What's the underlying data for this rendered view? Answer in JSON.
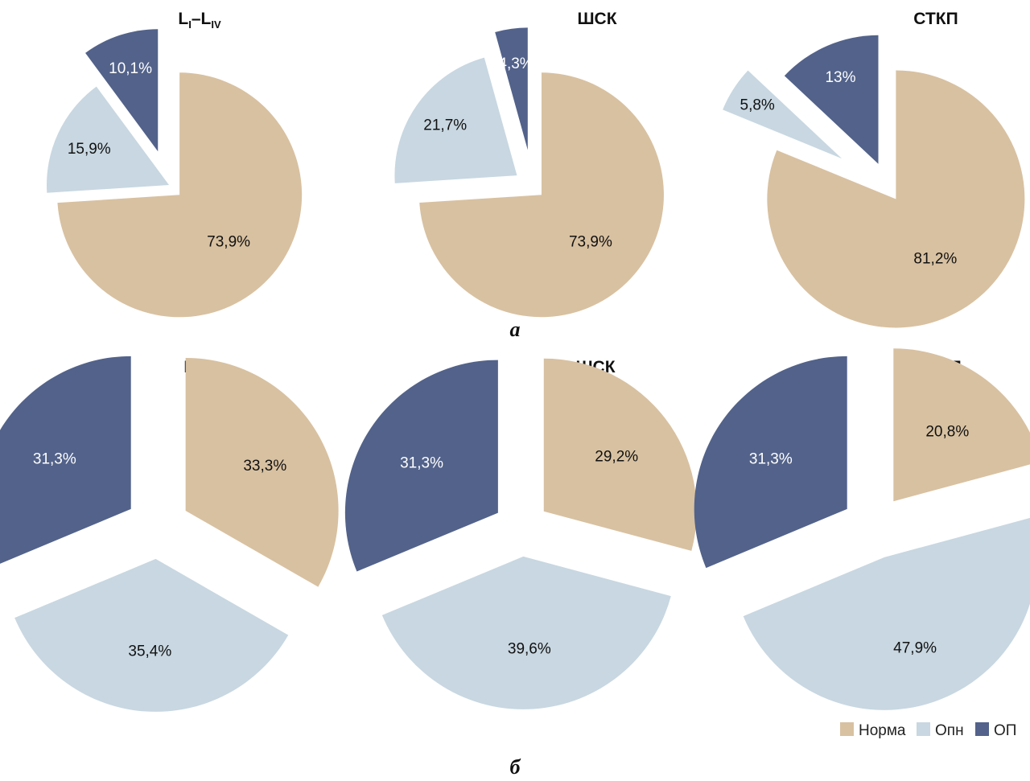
{
  "colors": {
    "norma": "#d8c1a1",
    "opn": "#c8d7e1",
    "op": "#52628a"
  },
  "legend": [
    {
      "label": "Норма",
      "color": "#d8c1a1"
    },
    {
      "label": "Опн",
      "color": "#c8d7e1"
    },
    {
      "label": "ОП",
      "color": "#52628a"
    }
  ],
  "panels": {
    "a": "а",
    "b": "б"
  },
  "chart_data": [
    {
      "type": "pie",
      "panel": "а",
      "title": "L–L",
      "title_parts": {
        "base1": "L",
        "sub1": "I",
        "dash": "–",
        "base2": "L",
        "sub2": "IV"
      },
      "slices": [
        {
          "category": "Норма",
          "value": 73.9,
          "label": "73,9%"
        },
        {
          "category": "Опн",
          "value": 15.9,
          "label": "15,9%"
        },
        {
          "category": "ОП",
          "value": 10.1,
          "label": "10,1%"
        }
      ]
    },
    {
      "type": "pie",
      "panel": "а",
      "title": "ШСК",
      "slices": [
        {
          "category": "Норма",
          "value": 73.9,
          "label": "73,9%"
        },
        {
          "category": "Опн",
          "value": 21.7,
          "label": "21,7%"
        },
        {
          "category": "ОП",
          "value": 4.3,
          "label": "4,3%"
        }
      ]
    },
    {
      "type": "pie",
      "panel": "а",
      "title": "СТКП",
      "slices": [
        {
          "category": "Норма",
          "value": 81.2,
          "label": "81,2%"
        },
        {
          "category": "Опн",
          "value": 5.8,
          "label": "5,8%"
        },
        {
          "category": "ОП",
          "value": 13,
          "label": "13%"
        }
      ]
    },
    {
      "type": "pie",
      "panel": "б",
      "title": "L–L",
      "title_parts": {
        "base1": "L",
        "sub1": "I",
        "dash": "–",
        "base2": "L",
        "sub2": "IV"
      },
      "slices": [
        {
          "category": "Норма",
          "value": 33.3,
          "label": "33,3%"
        },
        {
          "category": "Опн",
          "value": 35.4,
          "label": "35,4%"
        },
        {
          "category": "ОП",
          "value": 31.3,
          "label": "31,3%"
        }
      ]
    },
    {
      "type": "pie",
      "panel": "б",
      "title": "ШСК",
      "slices": [
        {
          "category": "Норма",
          "value": 29.2,
          "label": "29,2%"
        },
        {
          "category": "Опн",
          "value": 39.6,
          "label": "39,6%"
        },
        {
          "category": "ОП",
          "value": 31.3,
          "label": "31,3%"
        }
      ]
    },
    {
      "type": "pie",
      "panel": "б",
      "title": "СТКП",
      "slices": [
        {
          "category": "Норма",
          "value": 20.8,
          "label": "20,8%"
        },
        {
          "category": "Опн",
          "value": 47.9,
          "label": "47,9%"
        },
        {
          "category": "ОП",
          "value": 31.3,
          "label": "31,3%"
        }
      ]
    }
  ]
}
